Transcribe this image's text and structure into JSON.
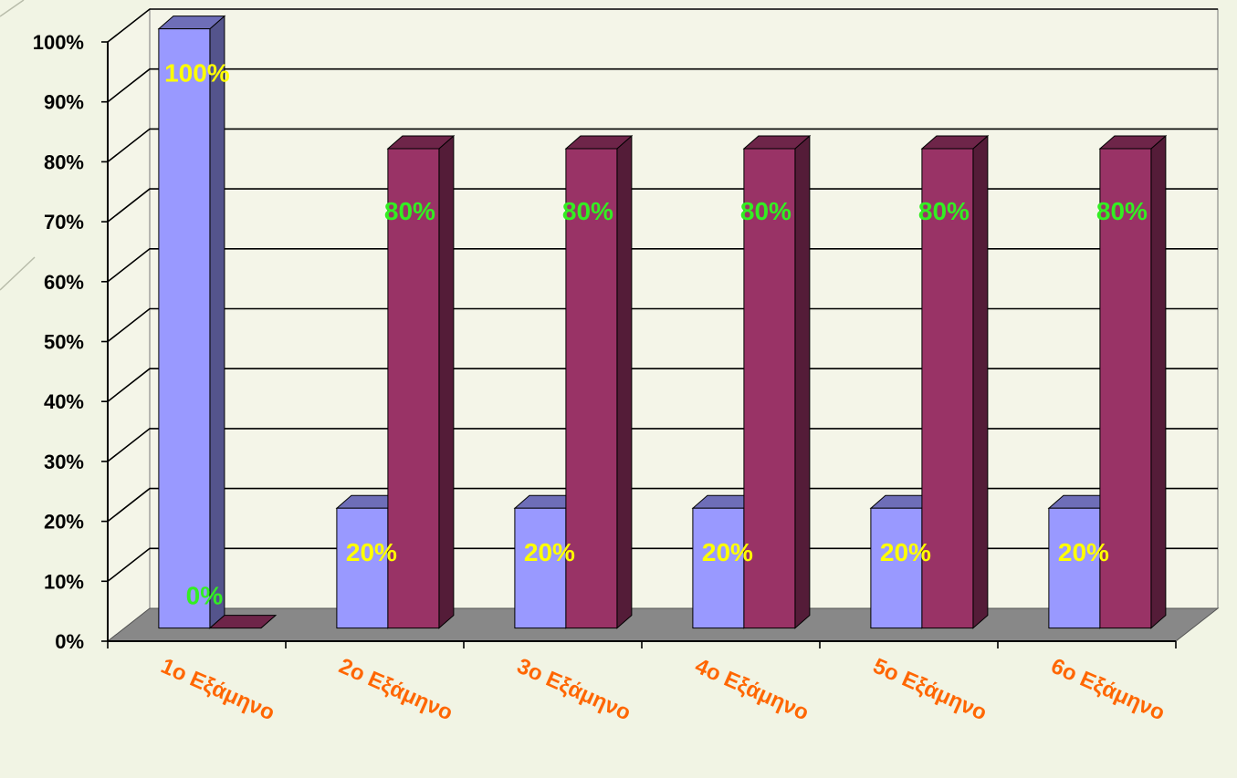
{
  "chart_data": {
    "type": "bar",
    "style": "3d-clustered-column",
    "categories": [
      "1ο Εξάμηνο",
      "2ο Εξάμηνο",
      "3ο Εξάμηνο",
      "4ο Εξάμηνο",
      "5ο Εξάμηνο",
      "6ο Εξάμηνο"
    ],
    "series": [
      {
        "values": [
          100,
          20,
          20,
          20,
          20,
          20
        ],
        "labels": [
          "100%",
          "20%",
          "20%",
          "20%",
          "20%",
          "20%"
        ],
        "color": "#9999ff",
        "label_color": "#ffff00"
      },
      {
        "values": [
          0,
          80,
          80,
          80,
          80,
          80
        ],
        "labels": [
          "0%",
          "80%",
          "80%",
          "80%",
          "80%",
          "80%"
        ],
        "color": "#993366",
        "label_color": "#33ee22"
      }
    ],
    "y_ticks": [
      "0%",
      "10%",
      "20%",
      "30%",
      "40%",
      "50%",
      "60%",
      "70%",
      "80%",
      "90%",
      "100%"
    ],
    "ylim": [
      0,
      100
    ],
    "grid": true,
    "category_label_color": "#ff6600",
    "floor_color": "#888888",
    "title": "",
    "xlabel": "",
    "ylabel": ""
  }
}
